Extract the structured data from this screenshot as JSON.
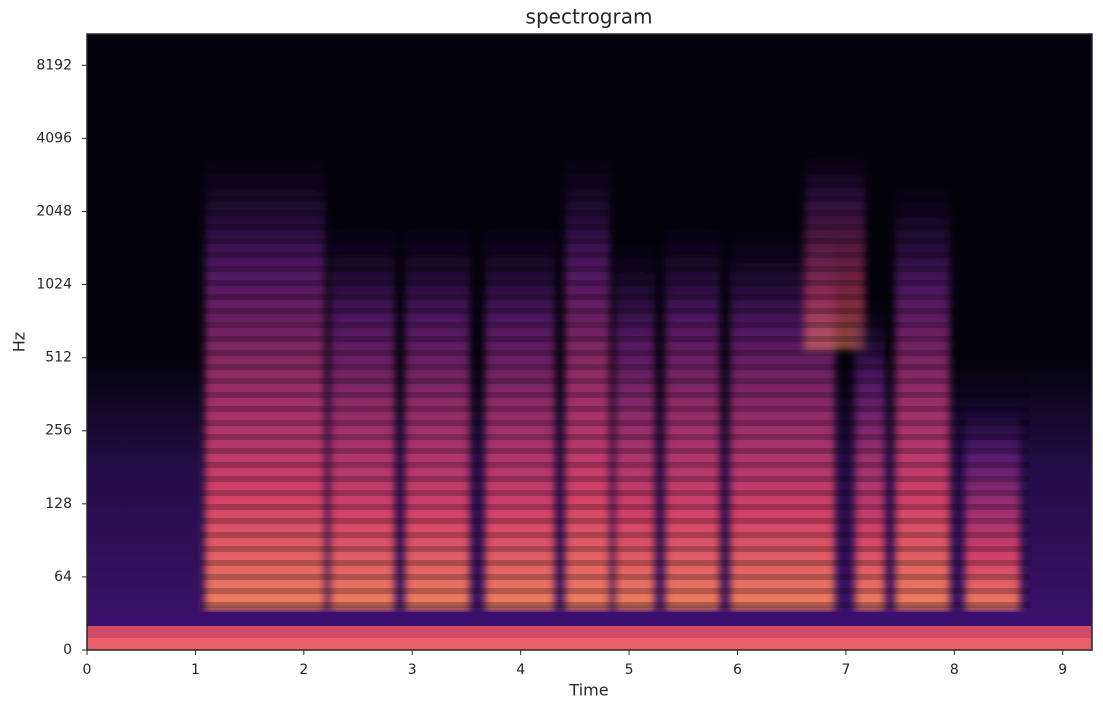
{
  "chart_data": {
    "type": "spectrogram",
    "title": "spectrogram",
    "xlabel": "Time",
    "ylabel": "Hz",
    "xlim": [
      0,
      9.27
    ],
    "xticks": [
      0,
      1,
      2,
      3,
      4,
      5,
      6,
      7,
      8,
      9
    ],
    "ylim": [
      0,
      11025
    ],
    "yscale": "symlog",
    "linthresh": 64,
    "base": 2,
    "yticks": [
      0,
      64,
      128,
      256,
      512,
      1024,
      2048,
      4096,
      8192
    ]
  }
}
